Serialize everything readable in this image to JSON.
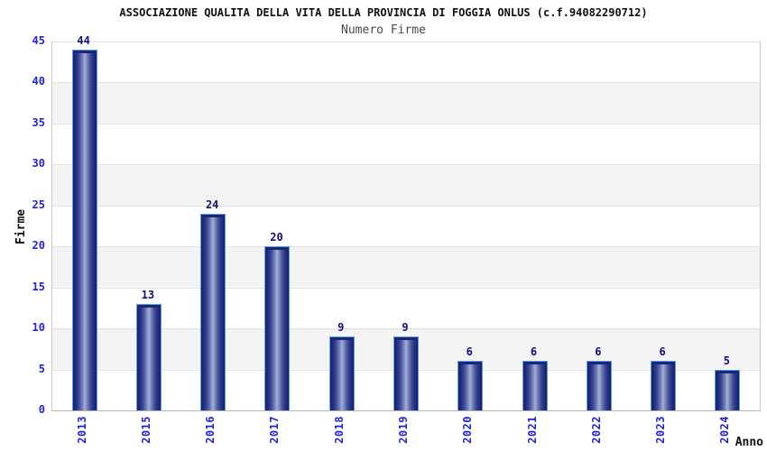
{
  "chart": {
    "title": "ASSOCIAZIONE QUALITA DELLA VITA DELLA PROVINCIA DI FOGGIA ONLUS (c.f.94082290712)",
    "subtitle": "Numero Firme",
    "ylabel": "Firme",
    "xlabel": "Anno"
  },
  "chart_data": {
    "type": "bar",
    "title": "ASSOCIAZIONE QUALITA DELLA VITA DELLA PROVINCIA DI FOGGIA ONLUS (c.f.94082290712)",
    "subtitle": "Numero Firme",
    "categories": [
      "2013",
      "2015",
      "2016",
      "2017",
      "2018",
      "2019",
      "2020",
      "2021",
      "2022",
      "2023",
      "2024"
    ],
    "values": [
      44,
      13,
      24,
      20,
      9,
      9,
      6,
      6,
      6,
      6,
      5
    ],
    "bar_value_labels": [
      "44",
      "13",
      "24",
      "20",
      "9",
      "9",
      "6",
      "6",
      "6",
      "6",
      "5"
    ],
    "xlabel": "Anno",
    "ylabel": "Firme",
    "ylim": [
      0,
      45
    ],
    "ytick_step": 5,
    "ytick_labels": [
      "0",
      "5",
      "10",
      "15",
      "20",
      "25",
      "30",
      "35",
      "40",
      "45"
    ],
    "grid": true,
    "legend": false,
    "background_bands": "alternating white / light gray every 5 units, white band at top (40-45)"
  },
  "colors": {
    "tick_label": "#2222dd",
    "bar_value_label": "#10107e",
    "bar_dark": "#18216f",
    "bar_mid": "#3c4a96",
    "bar_light": "#a6b0d8",
    "bar_border": "#58a0e8",
    "bar_cap": "#1c2676",
    "gridline": "#e2e2e2",
    "axis_border": "#c9c9c9",
    "axis_bottom": "#b5b5b5",
    "band_gray": "#f3f3f3",
    "title_color": "#111111",
    "subtitle_color": "#4a4a4a"
  }
}
